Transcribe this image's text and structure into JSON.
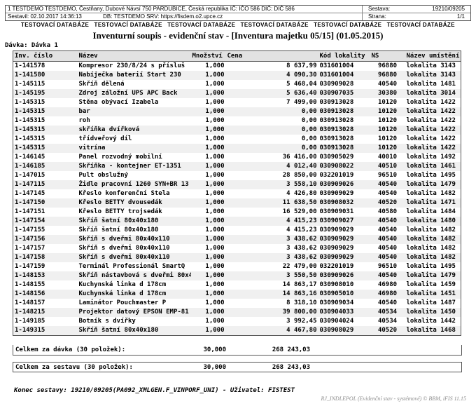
{
  "header": {
    "company": "1 TESTDEMO TESTDEMO, Čestňany, Dubové Návsí 750 PARDUBICE, Česká republika IČ: IČO 586  DIČ: DIČ 586",
    "sestava_label": "Sestava:",
    "sestava_value": "19210/09205",
    "sestavil": "Sestavil: 02.10.2017 14:36:13",
    "db_srv": "DB: TESTDEMO  SRV: https://fisdem.o2.upce.cz",
    "strana_label": "Strana:",
    "strana_value": "1/1"
  },
  "watermark": {
    "items": [
      "TESTOVACÍ DATABÁZE",
      "TESTOVACÍ DATABÁZE",
      "TESTOVACÍ DATABÁZE",
      "TESTOVACÍ DATABÁZE",
      "TESTOVACÍ DATABÁZE",
      "TESTOVACÍ DATABÁZE"
    ]
  },
  "title": "Inventurní soupis - evidenční stav - [Inventura majetku 05/15] (01.05.2015)",
  "batch_label": "Dávka: Dávka 1",
  "table": {
    "columns": [
      "Inv. číslo",
      "Název",
      "Množství",
      "Cena",
      "Kód lokality",
      "NS",
      "Název umístění"
    ],
    "rows": [
      [
        "1-141578",
        "Kompresor 230/8/24 s přísluš",
        "1,000",
        "8 637,99",
        "031601004",
        "96880",
        "lokalita 3143"
      ],
      [
        "1-141580",
        "Nabíječka baterií Start 230",
        "1,000",
        "4 090,30",
        "031601004",
        "96880",
        "lokalita 3143"
      ],
      [
        "1-145115",
        "Skříň dělená",
        "1,000",
        "5 468,04",
        "030909028",
        "40540",
        "lokalita 1481"
      ],
      [
        "1-145195",
        "Zdroj záložní UPS APC Back",
        "1,000",
        "5 636,40",
        "030907035",
        "30380",
        "lokalita 3014"
      ],
      [
        "1-145315",
        "Stěna obývací Izabela",
        "1,000",
        "7 499,00",
        "030913028",
        "10120",
        "lokalita 1422"
      ],
      [
        "1-145315",
        "bar",
        "1,000",
        "0,00",
        "030913028",
        "10120",
        "lokalita 1422"
      ],
      [
        "1-145315",
        "roh",
        "1,000",
        "0,00",
        "030913028",
        "10120",
        "lokalita 1422"
      ],
      [
        "1-145315",
        "skříňka dvířková",
        "1,000",
        "0,00",
        "030913028",
        "10120",
        "lokalita 1422"
      ],
      [
        "1-145315",
        "třídveřový díl",
        "1,000",
        "0,00",
        "030913028",
        "10120",
        "lokalita 1422"
      ],
      [
        "1-145315",
        "vitrína",
        "1,000",
        "0,00",
        "030913028",
        "10120",
        "lokalita 1422"
      ],
      [
        "1-146145",
        "Panel rozvodný mobilní",
        "1,000",
        "36 416,00",
        "030905029",
        "40010",
        "lokalita 1492"
      ],
      [
        "1-146185",
        "Skříňka - kontejner ET-1351",
        "1,000",
        "4 012,40",
        "030908022",
        "40510",
        "lokalita 1461"
      ],
      [
        "1-147015",
        "Pult obslužný",
        "1,000",
        "28 850,00",
        "032201019",
        "96510",
        "lokalita 1495"
      ],
      [
        "1-147115",
        "Židle pracovní 1260 SYN+BR 13",
        "1,000",
        "3 558,10",
        "030909026",
        "40540",
        "lokalita 1479"
      ],
      [
        "1-147145",
        "Křeslo konferenční Stela",
        "1,000",
        "4 426,80",
        "030909029",
        "40540",
        "lokalita 1482"
      ],
      [
        "1-147150",
        "Křeslo BETTY dvousedák",
        "1,000",
        "11 638,50",
        "030908032",
        "40520",
        "lokalita 1471"
      ],
      [
        "1-147151",
        "Křeslo BETTY trojsedák",
        "1,000",
        "16 529,00",
        "030909031",
        "40580",
        "lokalita 1484"
      ],
      [
        "1-147154",
        "Skříň šatní 80x40x180",
        "1,000",
        "4 415,23",
        "030909027",
        "40540",
        "lokalita 1480"
      ],
      [
        "1-147155",
        "Skříň šatní 80x40x180",
        "1,000",
        "4 415,23",
        "030909029",
        "40540",
        "lokalita 1482"
      ],
      [
        "1-147156",
        "Skříň s dveřmi 80x40x110",
        "1,000",
        "3 438,62",
        "030909029",
        "40540",
        "lokalita 1482"
      ],
      [
        "1-147157",
        "Skříň s dveřmi 80x40x110",
        "1,000",
        "3 438,62",
        "030909029",
        "40540",
        "lokalita 1482"
      ],
      [
        "1-147158",
        "Skříň s dveřmi 80x40x110",
        "1,000",
        "3 438,62",
        "030909029",
        "40540",
        "lokalita 1482"
      ],
      [
        "1-147159",
        "Terminál Professionál SmartQ",
        "1,000",
        "22 479,00",
        "032201019",
        "96510",
        "lokalita 1495"
      ],
      [
        "1-148153",
        "Skříň nástavbová s dveřmi 80x40x11",
        "1,000",
        "3 550,50",
        "030909026",
        "40540",
        "lokalita 1479"
      ],
      [
        "1-148155",
        "Kuchynská linka d 178cm",
        "1,000",
        "14 863,17",
        "030908010",
        "46980",
        "lokalita 1459"
      ],
      [
        "1-148156",
        "Kuchynská linka d 178cm",
        "1,000",
        "14 863,16",
        "030905010",
        "46980",
        "lokalita 1451"
      ],
      [
        "1-148157",
        "Laminátor Pouchmaster P",
        "1,000",
        "8 318,10",
        "030909034",
        "40540",
        "lokalita 1487"
      ],
      [
        "1-148215",
        "Projektor datový EPSON EMP-81",
        "1,000",
        "39 800,00",
        "030904033",
        "40534",
        "lokalita 1450"
      ],
      [
        "1-149185",
        "Botník s dvířky",
        "1,000",
        "3 992,45",
        "030904024",
        "40534",
        "lokalita 1442"
      ],
      [
        "1-149315",
        "Skříň šatní 80x40x180",
        "1,000",
        "4 467,80",
        "030908029",
        "40520",
        "lokalita 1468"
      ]
    ]
  },
  "totals": {
    "batch": {
      "label": "Celkem za dávka (30 položek):",
      "quantity": "30,000",
      "price": "268 243,03"
    },
    "report": {
      "label": "Celkem za sestavu (30 položek):",
      "quantity": "30,000",
      "price": "268 243,03"
    }
  },
  "footer": {
    "end_text": "Konec sestavy: 19210/09205(PA092_XMLGEN.F_VINPORF_UNI) - Uživatel: FISTEST",
    "signature": "RJ_INDLEPOL (Evidenční stav - systémové) © BBM, iFIS 11.15"
  }
}
